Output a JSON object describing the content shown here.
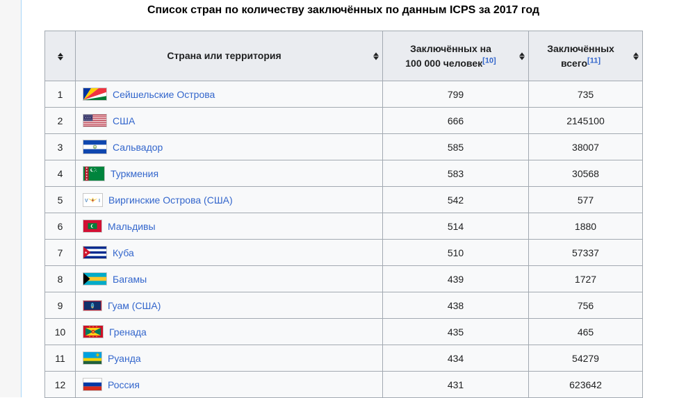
{
  "page": {
    "title": "Список стран по количеству заключённых по данным ICPS за 2017 год"
  },
  "table": {
    "headers": {
      "country": "Страна или территория",
      "rate_line1": "Заключённых на",
      "rate_line2": "100 000 человек",
      "rate_ref": "[10]",
      "total_line1": "Заключённых",
      "total_line2": "всего",
      "total_ref": "[11]"
    },
    "rows": [
      {
        "rank": "1",
        "country": "Сейшельские Острова",
        "flag": "seychelles",
        "rate": "799",
        "total": "735"
      },
      {
        "rank": "2",
        "country": "США",
        "flag": "usa",
        "rate": "666",
        "total": "2145100"
      },
      {
        "rank": "3",
        "country": "Сальвадор",
        "flag": "el-salvador",
        "rate": "585",
        "total": "38007"
      },
      {
        "rank": "4",
        "country": "Туркмения",
        "flag": "turkmenistan",
        "rate": "583",
        "total": "30568"
      },
      {
        "rank": "5",
        "country": "Виргинские Острова (США)",
        "flag": "virgin-islands",
        "rate": "542",
        "total": "577"
      },
      {
        "rank": "6",
        "country": "Мальдивы",
        "flag": "maldives",
        "rate": "514",
        "total": "1880"
      },
      {
        "rank": "7",
        "country": "Куба",
        "flag": "cuba",
        "rate": "510",
        "total": "57337"
      },
      {
        "rank": "8",
        "country": "Багамы",
        "flag": "bahamas",
        "rate": "439",
        "total": "1727"
      },
      {
        "rank": "9",
        "country": "Гуам (США)",
        "flag": "guam",
        "rate": "438",
        "total": "756"
      },
      {
        "rank": "10",
        "country": "Гренада",
        "flag": "grenada",
        "rate": "435",
        "total": "465"
      },
      {
        "rank": "11",
        "country": "Руанда",
        "flag": "rwanda",
        "rate": "434",
        "total": "54279"
      },
      {
        "rank": "12",
        "country": "Россия",
        "flag": "russia",
        "rate": "431",
        "total": "623642"
      }
    ]
  },
  "colors": {
    "link": "#3366cc",
    "header_bg": "#eaecf0",
    "row_bg": "#f8f9fa",
    "table_border": "#a2a9b1",
    "gutter_bg": "#f6f6f6",
    "gutter_border": "#a7d7f9",
    "sort_arrow": "#202122"
  }
}
